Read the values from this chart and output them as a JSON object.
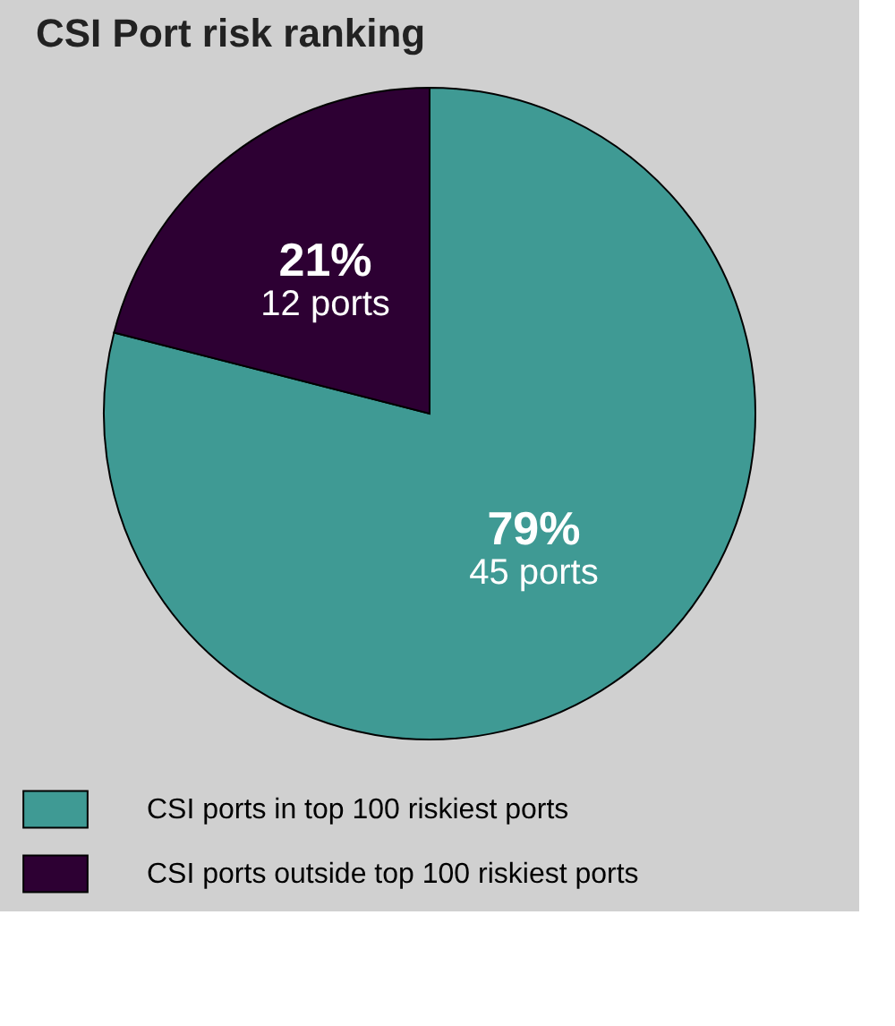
{
  "chart_data": {
    "type": "pie",
    "title": "CSI Port risk ranking",
    "categories": [
      "CSI ports in top 100 riskiest ports",
      "CSI ports outside top 100 riskiest ports"
    ],
    "values": [
      79,
      21
    ],
    "colors": [
      "#3f9a94",
      "#2d0033"
    ],
    "value_labels": [
      "79%",
      "21%"
    ],
    "annotations": [
      "45 ports",
      "12 ports"
    ],
    "legend": "bottom"
  }
}
